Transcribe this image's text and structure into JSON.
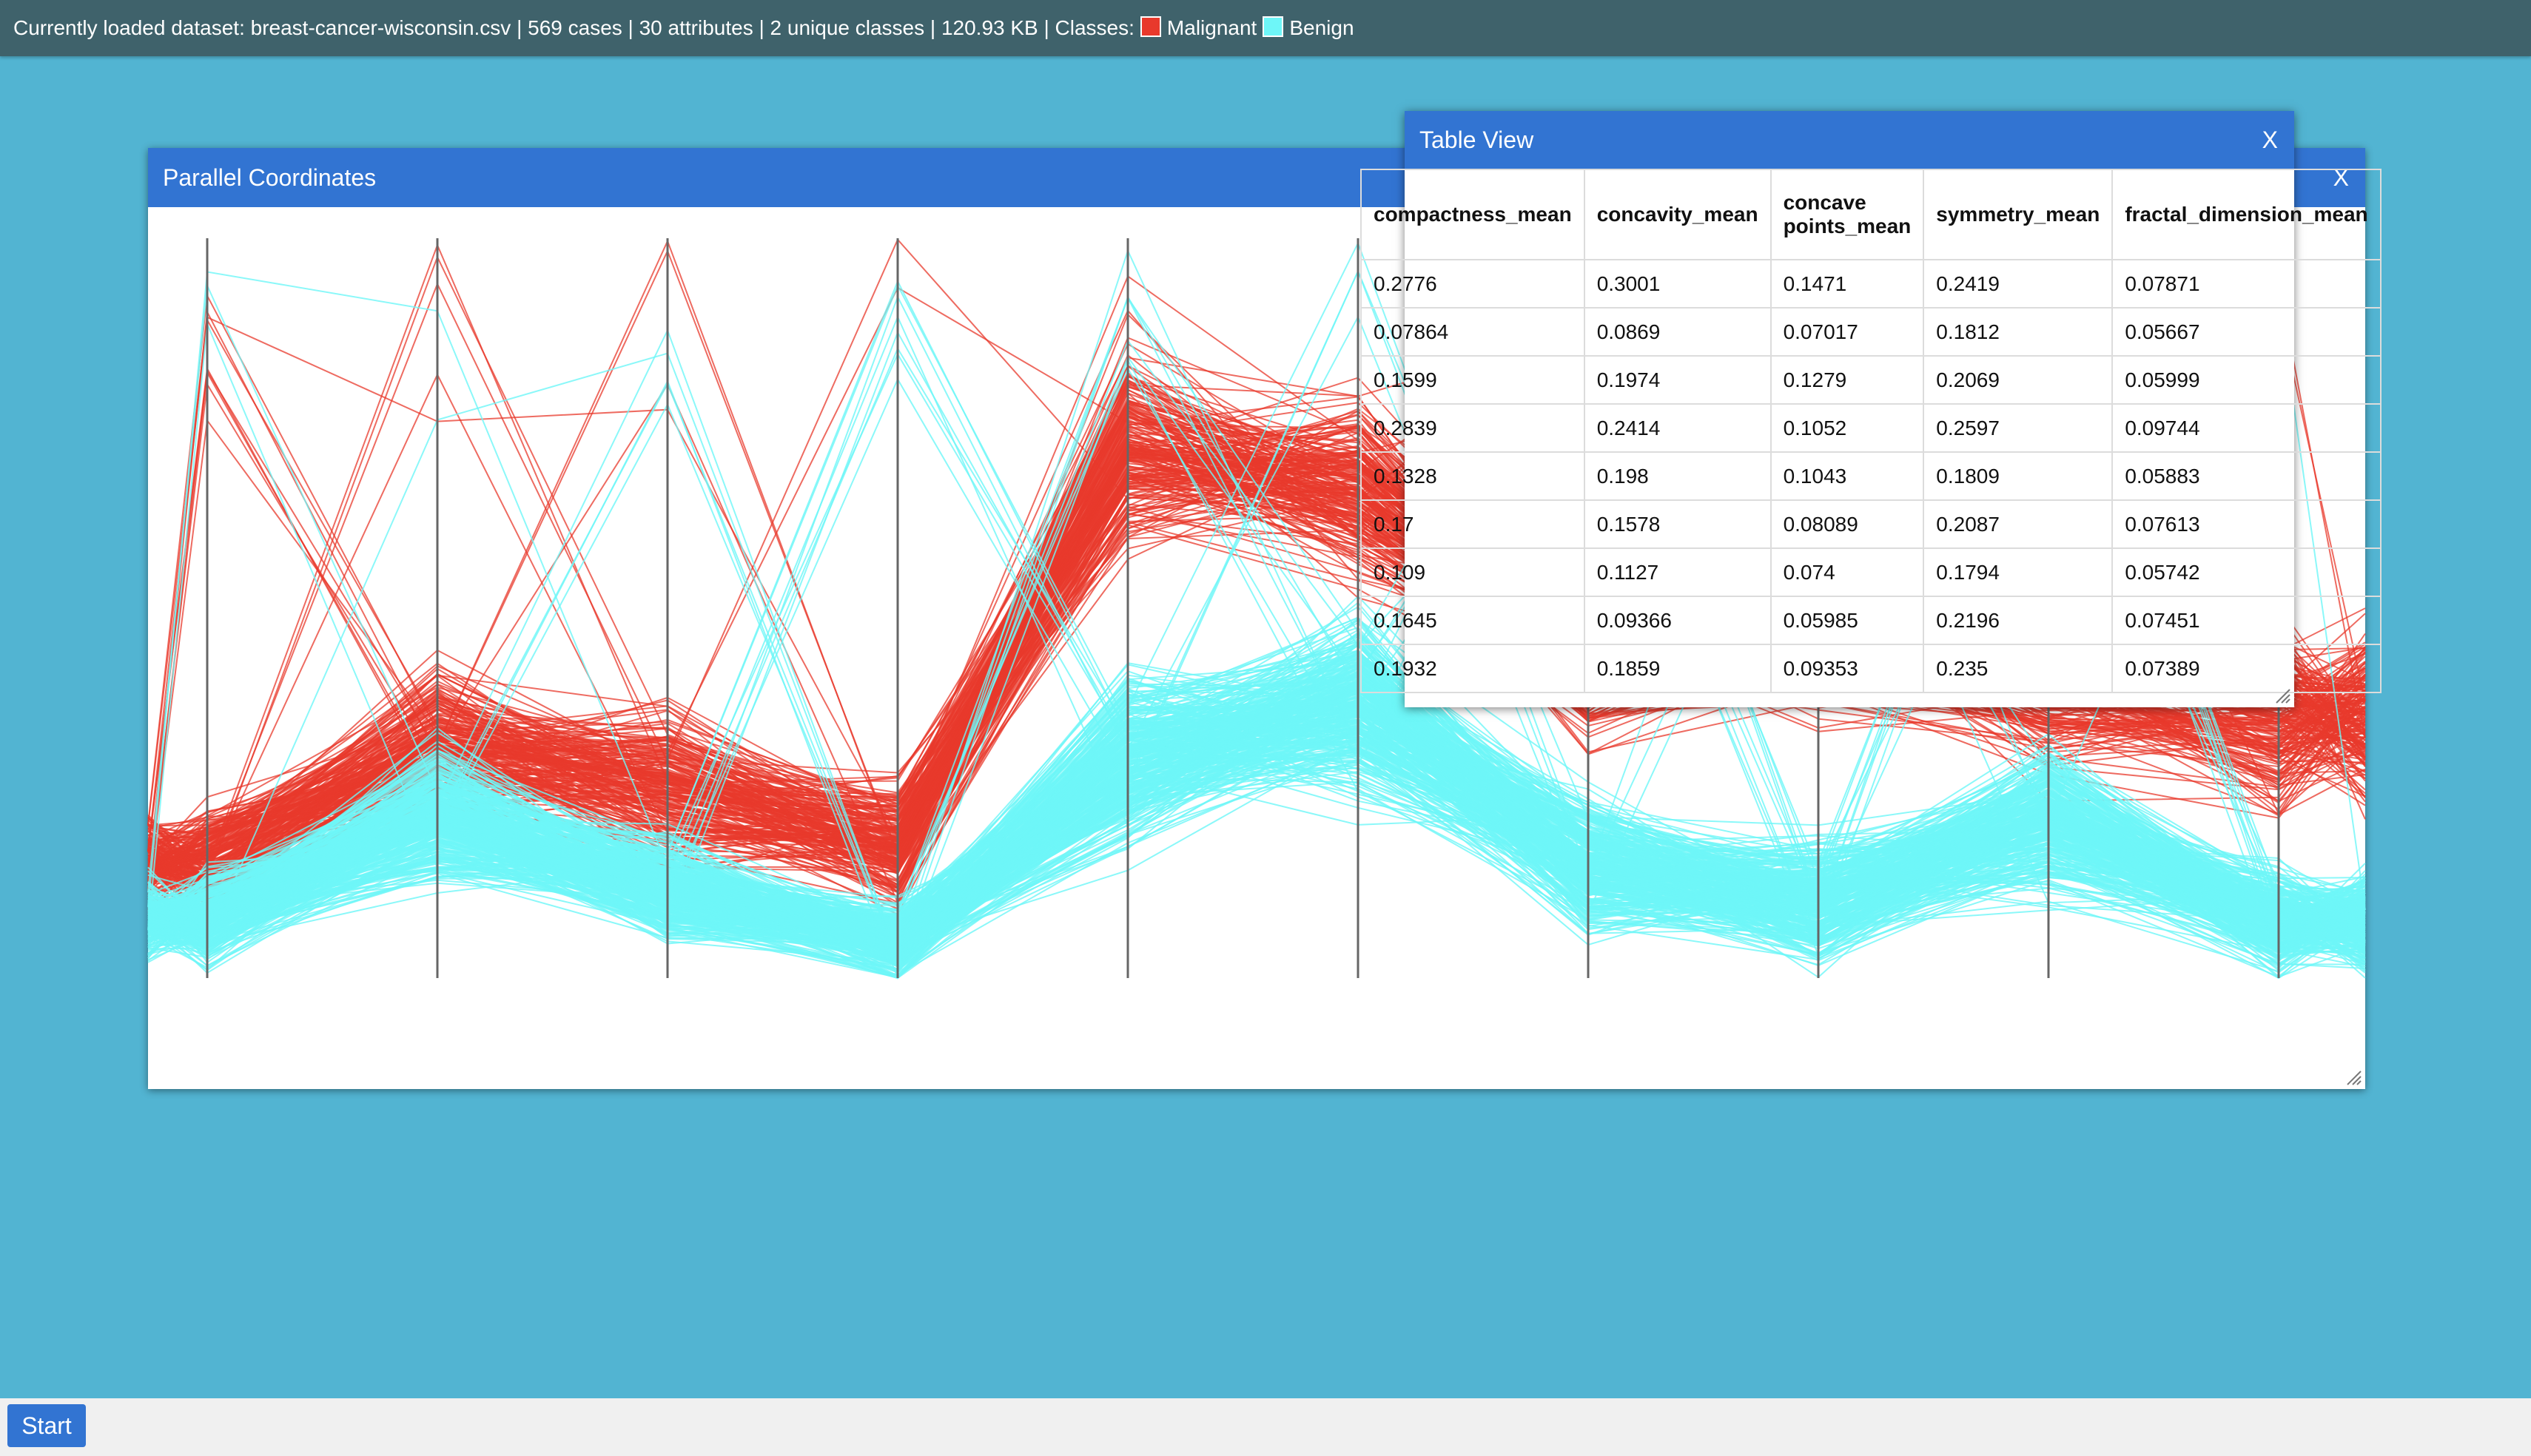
{
  "status_bar": {
    "text": "Currently loaded dataset: breast-cancer-wisconsin.csv | 569 cases | 30 attributes | 2 unique classes | 120.93 KB | Classes:",
    "classes": [
      {
        "label": "Malignant",
        "color": "#e8392c"
      },
      {
        "label": "Benign",
        "color": "#6ef6f8"
      }
    ]
  },
  "parallel_window": {
    "title": "Parallel Coordinates",
    "close_label": "X"
  },
  "table_window": {
    "title": "Table View",
    "close_label": "X",
    "columns": [
      "compactness_mean",
      "concavity_mean",
      "concave points_mean",
      "symmetry_mean",
      "fractal_dimension_mean"
    ],
    "rows": [
      [
        "0.2776",
        "0.3001",
        "0.1471",
        "0.2419",
        "0.07871"
      ],
      [
        "0.07864",
        "0.0869",
        "0.07017",
        "0.1812",
        "0.05667"
      ],
      [
        "0.1599",
        "0.1974",
        "0.1279",
        "0.2069",
        "0.05999"
      ],
      [
        "0.2839",
        "0.2414",
        "0.1052",
        "0.2597",
        "0.09744"
      ],
      [
        "0.1328",
        "0.198",
        "0.1043",
        "0.1809",
        "0.05883"
      ],
      [
        "0.17",
        "0.1578",
        "0.08089",
        "0.2087",
        "0.07613"
      ],
      [
        "0.109",
        "0.1127",
        "0.074",
        "0.1794",
        "0.05742"
      ],
      [
        "0.1645",
        "0.09366",
        "0.05985",
        "0.2196",
        "0.07451"
      ],
      [
        "0.1932",
        "0.1859",
        "0.09353",
        "0.235",
        "0.07389"
      ]
    ]
  },
  "taskbar": {
    "start_label": "Start"
  },
  "chart_data": {
    "type": "line",
    "subtype": "parallel-coordinates",
    "axes_count": 10,
    "series": [
      {
        "name": "Malignant",
        "color": "#e8392c"
      },
      {
        "name": "Benign",
        "color": "#6ef6f8"
      }
    ],
    "axis_color": "#666666"
  }
}
